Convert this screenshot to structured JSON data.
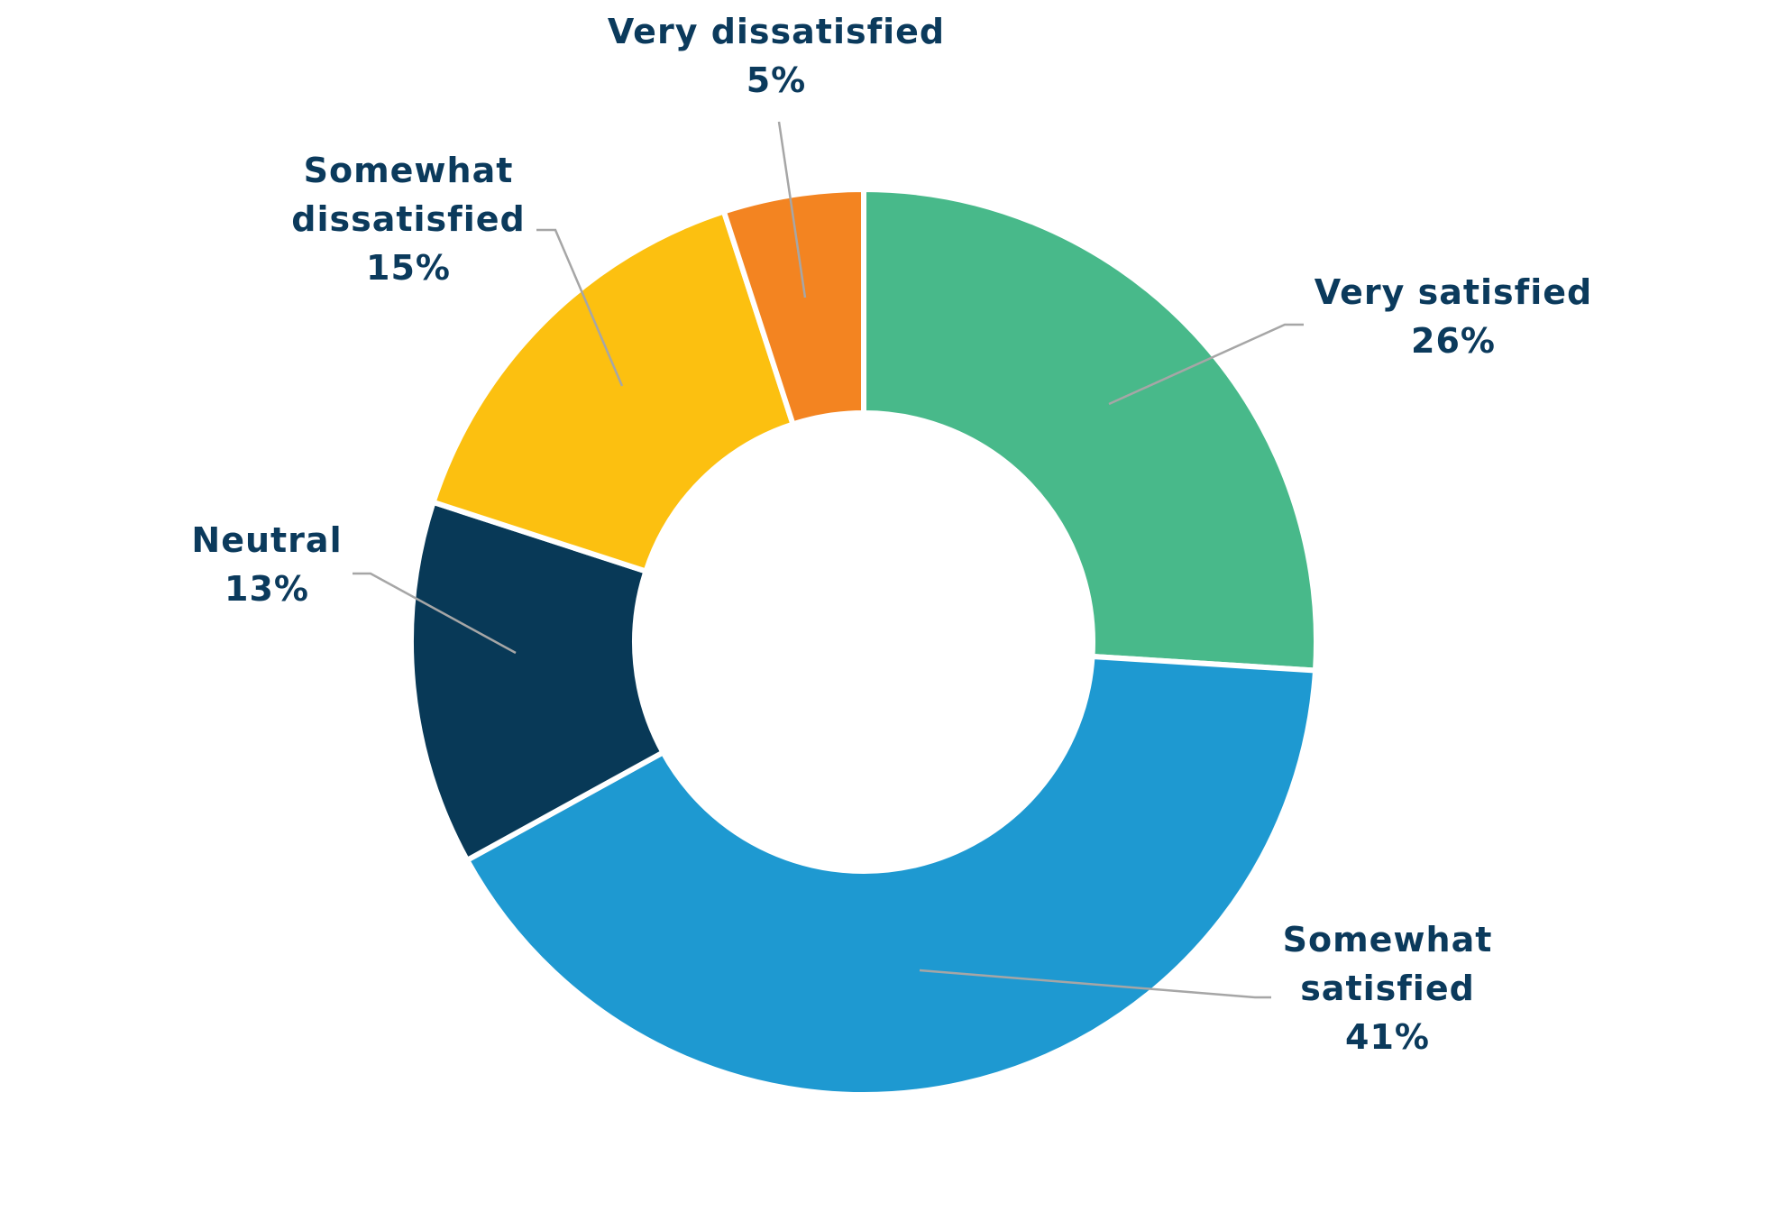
{
  "chart_data": {
    "type": "pie",
    "variant": "donut",
    "title": "",
    "label_color": "#0b3a5c",
    "leader_color": "#a6a6a6",
    "slices": [
      {
        "label": "Very satisfied",
        "label_lines": [
          "Very satisfied"
        ],
        "value": 26,
        "value_label": "26%",
        "color": "#48b98a"
      },
      {
        "label": "Somewhat satisfied",
        "label_lines": [
          "Somewhat",
          "satisfied"
        ],
        "value": 41,
        "value_label": "41%",
        "color": "#1e99d1"
      },
      {
        "label": "Neutral",
        "label_lines": [
          "Neutral"
        ],
        "value": 13,
        "value_label": "13%",
        "color": "#083957"
      },
      {
        "label": "Somewhat dissatisfied",
        "label_lines": [
          "Somewhat",
          "dissatisfied"
        ],
        "value": 15,
        "value_label": "15%",
        "color": "#fcc010"
      },
      {
        "label": "Very dissatisfied",
        "label_lines": [
          "Very dissatisfied"
        ],
        "value": 5,
        "value_label": "5%",
        "color": "#f38421"
      }
    ]
  }
}
